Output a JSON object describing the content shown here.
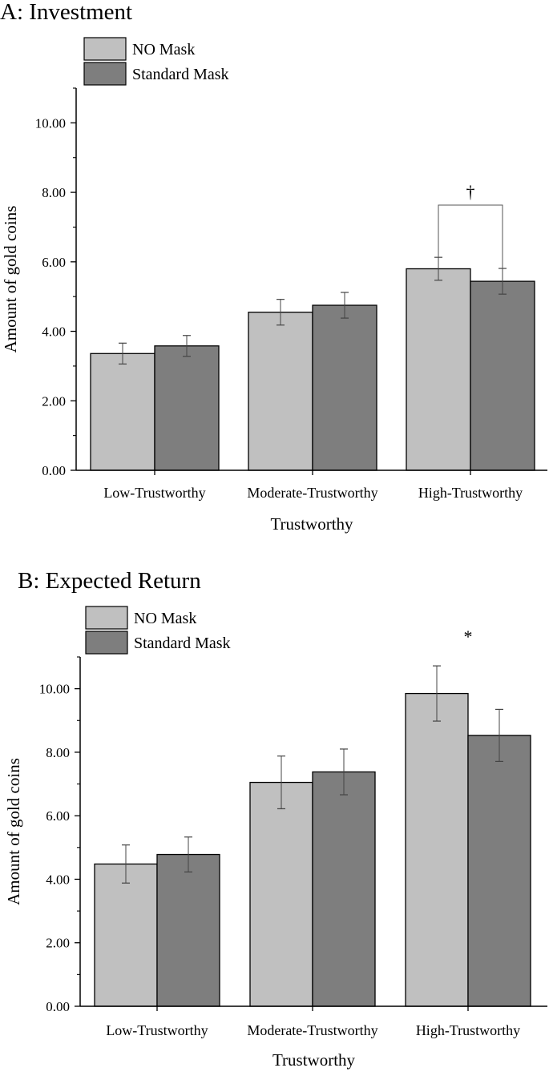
{
  "colors": {
    "no_mask": "#c0c0c0",
    "standard_mask": "#7e7e7e",
    "axis": "#000000",
    "error_bar": "#444444"
  },
  "chart_data": [
    {
      "type": "bar",
      "title": "A: Investment",
      "xlabel": "Trustworthy",
      "ylabel": "Amount of gold coins",
      "ylim": [
        0,
        11
      ],
      "yticks": [
        "0.00",
        "2.00",
        "4.00",
        "6.00",
        "8.00",
        "10.00"
      ],
      "ytick_values": [
        0,
        2,
        4,
        6,
        8,
        10
      ],
      "categories": [
        "Low-Trustworthy",
        "Moderate-Trustworthy",
        "High-Trustworthy"
      ],
      "legend_position": "top-left",
      "grid": false,
      "series": [
        {
          "name": "NO Mask",
          "values": [
            3.36,
            4.55,
            5.8
          ],
          "errors": [
            0.3,
            0.37,
            0.33
          ]
        },
        {
          "name": "Standard Mask",
          "values": [
            3.58,
            4.75,
            5.44
          ],
          "errors": [
            0.3,
            0.37,
            0.37
          ]
        }
      ],
      "annotations": [
        {
          "category": "High-Trustworthy",
          "symbol": "†",
          "bracket": true
        }
      ]
    },
    {
      "type": "bar",
      "title": "B: Expected Return",
      "xlabel": "Trustworthy",
      "ylabel": "Amount of gold coins",
      "ylim": [
        0,
        11
      ],
      "yticks": [
        "0.00",
        "2.00",
        "4.00",
        "6.00",
        "8.00",
        "10.00"
      ],
      "ytick_values": [
        0,
        2,
        4,
        6,
        8,
        10
      ],
      "categories": [
        "Low-Trustworthy",
        "Moderate-Trustworthy",
        "High-Trustworthy"
      ],
      "legend_position": "top-left",
      "grid": false,
      "series": [
        {
          "name": "NO Mask",
          "values": [
            4.48,
            7.05,
            9.85
          ],
          "errors": [
            0.6,
            0.83,
            0.87
          ]
        },
        {
          "name": "Standard Mask",
          "values": [
            4.78,
            7.38,
            8.53
          ],
          "errors": [
            0.55,
            0.72,
            0.82
          ]
        }
      ],
      "annotations": [
        {
          "category": "High-Trustworthy",
          "symbol": "*",
          "bracket": false
        }
      ]
    }
  ]
}
